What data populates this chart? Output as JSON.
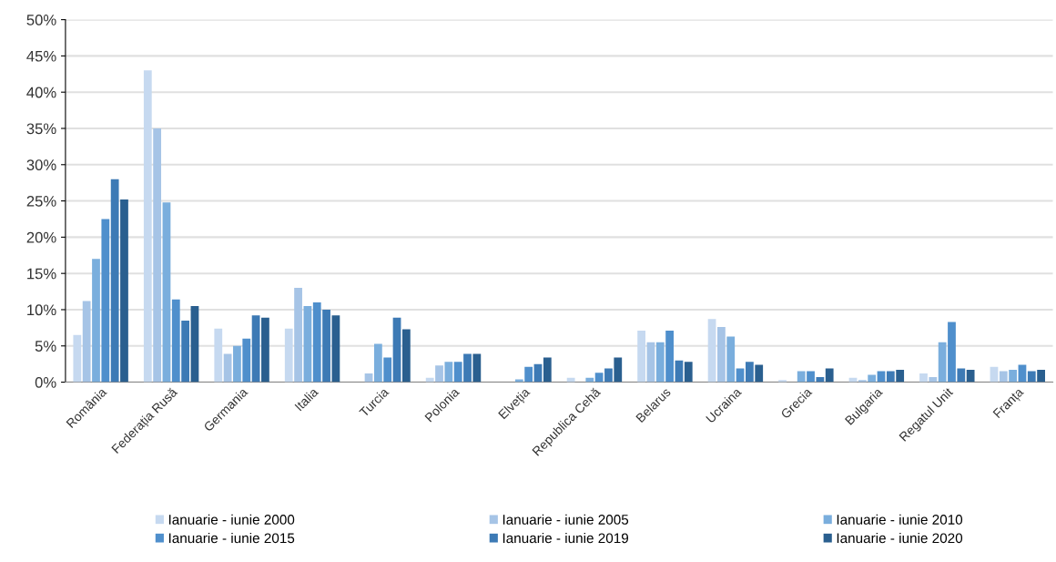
{
  "chart_data": {
    "type": "bar",
    "categories": [
      "România",
      "Federația Rusă",
      "Germania",
      "Italia",
      "Turcia",
      "Polonia",
      "Elveția",
      "Republica Cehă",
      "Belarus",
      "Ucraina",
      "Grecia",
      "Bulgaria",
      "Regatul Unit",
      "Franța"
    ],
    "series": [
      {
        "name": "Ianuarie - iunie 2000",
        "color": "#c6d9f0",
        "values": [
          6.5,
          43,
          7.4,
          7.4,
          0,
          0.6,
          0,
          0.6,
          7.1,
          8.7,
          0.3,
          0.6,
          1.2,
          2.1
        ]
      },
      {
        "name": "Ianuarie - iunie 2005",
        "color": "#a6c4e6",
        "values": [
          11.2,
          35,
          3.9,
          13,
          1.2,
          2.3,
          0,
          null,
          5.5,
          7.6,
          0,
          0.3,
          0.7,
          1.5
        ]
      },
      {
        "name": "Ianuarie - iunie 2010",
        "color": "#7aaedd",
        "values": [
          17,
          24.8,
          5,
          10.5,
          5.3,
          2.8,
          0.4,
          0.6,
          5.5,
          6.3,
          1.5,
          1.0,
          5.5,
          1.7
        ]
      },
      {
        "name": "Ianuarie - iunie 2015",
        "color": "#4f8fcc",
        "values": [
          22.5,
          11.4,
          6,
          11,
          3.4,
          2.8,
          2.1,
          1.3,
          7.1,
          1.9,
          1.5,
          1.5,
          8.3,
          2.4
        ]
      },
      {
        "name": "Ianuarie - iunie 2019",
        "color": "#3d7ab5",
        "values": [
          28,
          8.5,
          9.2,
          10,
          8.9,
          3.9,
          2.5,
          1.9,
          3.0,
          2.8,
          0.7,
          1.5,
          1.9,
          1.5
        ]
      },
      {
        "name": "Ianuarie - iunie 2020",
        "color": "#2a5f8f",
        "values": [
          25.2,
          10.5,
          8.9,
          9.2,
          7.3,
          3.9,
          3.4,
          3.4,
          2.8,
          2.4,
          1.9,
          1.7,
          1.7,
          1.7
        ]
      }
    ],
    "ylim": [
      0,
      50
    ],
    "yticks": [
      {
        "value": 0,
        "label": "0%"
      },
      {
        "value": 5,
        "label": "5%"
      },
      {
        "value": 10,
        "label": "10%"
      },
      {
        "value": 15,
        "label": "15%"
      },
      {
        "value": 20,
        "label": "20%"
      },
      {
        "value": 25,
        "label": "25%"
      },
      {
        "value": 30,
        "label": "30%"
      },
      {
        "value": 35,
        "label": "35%"
      },
      {
        "value": 40,
        "label": "40%"
      },
      {
        "value": 45,
        "label": "45%"
      },
      {
        "value": 50,
        "label": "50%"
      }
    ],
    "grid": "y",
    "legend": "bottom"
  }
}
